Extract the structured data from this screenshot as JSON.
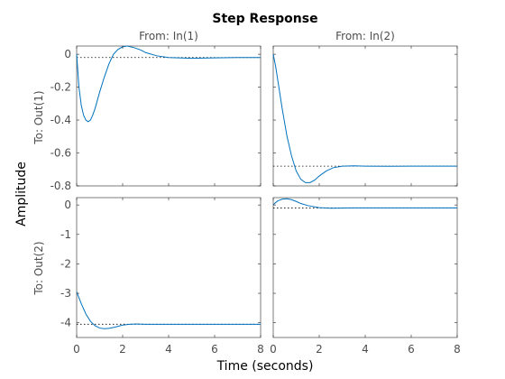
{
  "chart_data": {
    "type": "line",
    "title": "Step Response",
    "xlabel": "Time (seconds)",
    "ylabel": "Amplitude",
    "grid": false,
    "xlim": [
      0,
      8
    ],
    "x_ticks": [
      0,
      2,
      4,
      6,
      8
    ],
    "x_tick_labels": [
      "0",
      "2",
      "4",
      "6",
      "8"
    ],
    "series_color": "#0072bd",
    "input_labels": [
      "From: In(1)",
      "From: In(2)"
    ],
    "output_labels": [
      "To: Out(1)",
      "To: Out(2)"
    ],
    "row_ylims": [
      [
        -0.8,
        0.05
      ],
      [
        -4.5,
        0.25
      ]
    ],
    "row_y_ticks": [
      [
        0,
        -0.2,
        -0.4,
        -0.6,
        -0.8
      ],
      [
        0,
        -1,
        -2,
        -3,
        -4
      ]
    ],
    "row_y_tick_labels": [
      [
        "0",
        "-0.2",
        "-0.4",
        "-0.6",
        "-0.8"
      ],
      [
        "0",
        "-1",
        "-2",
        "-3",
        "-4"
      ]
    ],
    "panels": [
      {
        "output": "To: Out(1)",
        "input": "From: In(1)",
        "steady_state": -0.02,
        "x": [
          0,
          0.1,
          0.2,
          0.3,
          0.4,
          0.5,
          0.6,
          0.7,
          0.8,
          0.9,
          1.0,
          1.2,
          1.4,
          1.6,
          1.8,
          2.0,
          2.2,
          2.5,
          2.8,
          3.0,
          3.5,
          4.0,
          5.0,
          6.0,
          7.0,
          8.0
        ],
        "y": [
          0,
          -0.2,
          -0.31,
          -0.37,
          -0.4,
          -0.41,
          -0.4,
          -0.37,
          -0.33,
          -0.28,
          -0.23,
          -0.14,
          -0.06,
          0.0,
          0.03,
          0.045,
          0.05,
          0.04,
          0.025,
          0.01,
          -0.01,
          -0.02,
          -0.025,
          -0.022,
          -0.02,
          -0.02
        ]
      },
      {
        "output": "To: Out(1)",
        "input": "From: In(2)",
        "steady_state": -0.68,
        "x": [
          0,
          0.1,
          0.2,
          0.4,
          0.6,
          0.8,
          1.0,
          1.2,
          1.4,
          1.6,
          1.8,
          2.0,
          2.3,
          2.6,
          3.0,
          3.5,
          4.0,
          5.0,
          6.0,
          7.0,
          8.0
        ],
        "y": [
          0,
          -0.07,
          -0.16,
          -0.34,
          -0.5,
          -0.62,
          -0.71,
          -0.76,
          -0.78,
          -0.78,
          -0.765,
          -0.74,
          -0.71,
          -0.69,
          -0.68,
          -0.678,
          -0.68,
          -0.681,
          -0.68,
          -0.68,
          -0.68
        ]
      },
      {
        "output": "To: Out(2)",
        "input": "From: In(1)",
        "steady_state": -4.05,
        "x": [
          0,
          0.2,
          0.4,
          0.6,
          0.8,
          1.0,
          1.2,
          1.4,
          1.6,
          1.8,
          2.0,
          2.3,
          2.6,
          3.0,
          3.5,
          4.0,
          5.0,
          6.0,
          7.0,
          8.0
        ],
        "y": [
          -2.95,
          -3.35,
          -3.7,
          -3.95,
          -4.1,
          -4.18,
          -4.2,
          -4.19,
          -4.16,
          -4.12,
          -4.08,
          -4.05,
          -4.04,
          -4.05,
          -4.05,
          -4.05,
          -4.05,
          -4.05,
          -4.05,
          -4.05
        ]
      },
      {
        "output": "To: Out(2)",
        "input": "From: In(2)",
        "steady_state": -0.1,
        "x": [
          0,
          0.1,
          0.2,
          0.4,
          0.6,
          0.8,
          1.0,
          1.2,
          1.5,
          2.0,
          2.5,
          3.0,
          3.5,
          4.0,
          5.0,
          6.0,
          7.0,
          8.0
        ],
        "y": [
          0,
          0.08,
          0.14,
          0.2,
          0.21,
          0.18,
          0.12,
          0.05,
          -0.02,
          -0.09,
          -0.11,
          -0.105,
          -0.1,
          -0.1,
          -0.1,
          -0.1,
          -0.1,
          -0.1
        ]
      }
    ]
  }
}
